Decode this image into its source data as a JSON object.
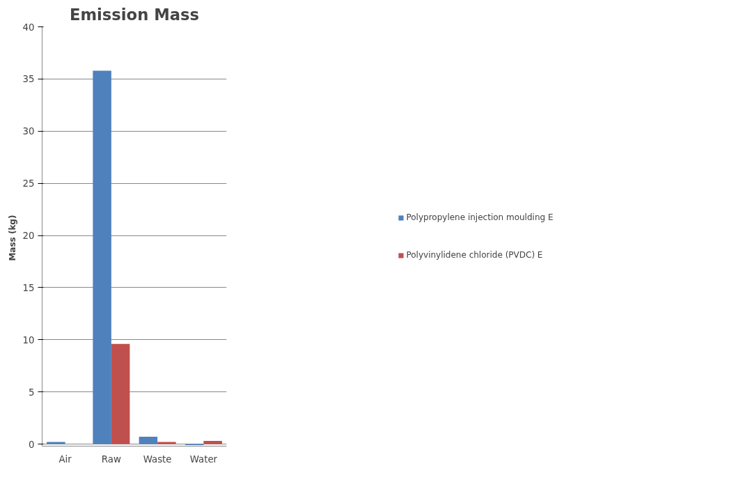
{
  "chart_data": {
    "type": "bar",
    "title": "Emission Mass",
    "ylabel": "Mass  (kg)",
    "categories": [
      "Air",
      "Raw",
      "Waste",
      "Water"
    ],
    "series": [
      {
        "name": "Polypropylene injection moulding E",
        "color": "#4f81bd",
        "values": [
          0.2,
          35.8,
          0.7,
          -0.1
        ]
      },
      {
        "name": "Polyvinylidene chloride (PVDC) E",
        "color": "#c0504d",
        "values": [
          0,
          9.6,
          0.2,
          0.3
        ]
      }
    ],
    "ylim": [
      -0.2,
      40
    ],
    "yticks": [
      0,
      5,
      10,
      15,
      20,
      25,
      30,
      35,
      40
    ],
    "grid": "y",
    "legend": "right"
  }
}
